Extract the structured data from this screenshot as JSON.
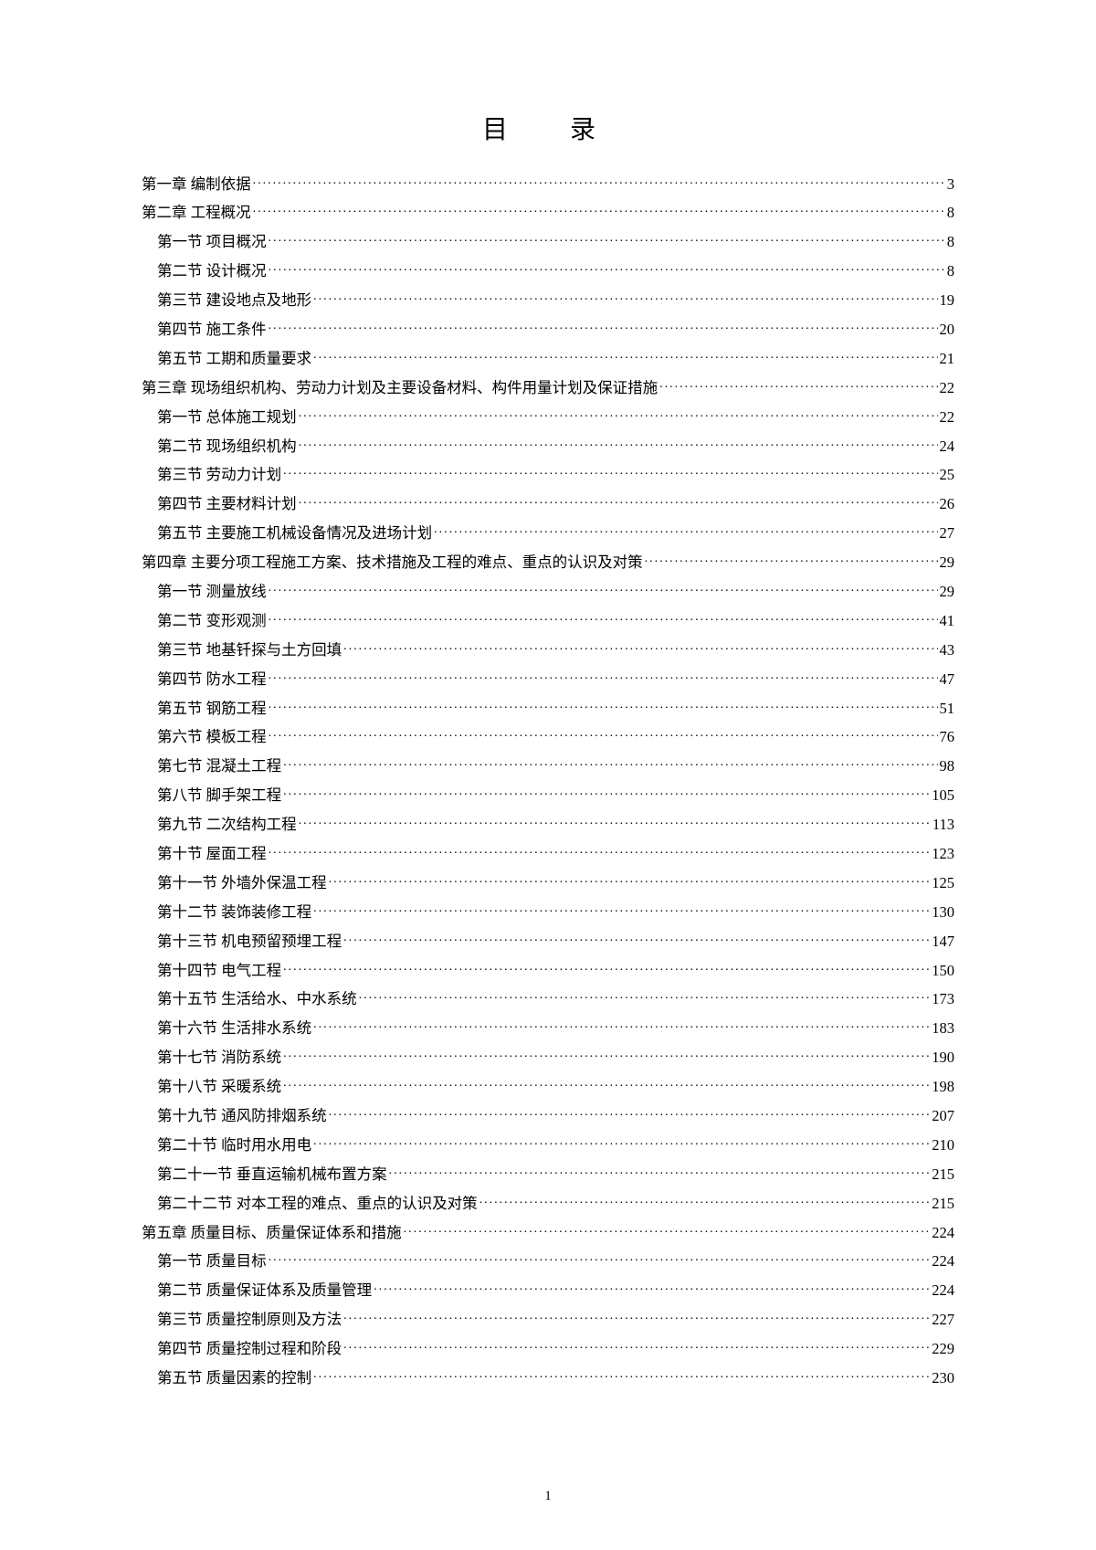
{
  "title": "目　录",
  "pageNumber": "1",
  "entries": [
    {
      "level": 0,
      "label": "第一章 编制依据",
      "page": "3"
    },
    {
      "level": 0,
      "label": "第二章 工程概况",
      "page": "8"
    },
    {
      "level": 1,
      "label": "第一节 项目概况",
      "page": "8"
    },
    {
      "level": 1,
      "label": "第二节 设计概况",
      "page": "8"
    },
    {
      "level": 1,
      "label": "第三节 建设地点及地形",
      "page": "19"
    },
    {
      "level": 1,
      "label": "第四节 施工条件",
      "page": "20"
    },
    {
      "level": 1,
      "label": "第五节 工期和质量要求",
      "page": "21"
    },
    {
      "level": 0,
      "label": "第三章 现场组织机构、劳动力计划及主要设备材料、构件用量计划及保证措施",
      "page": "22"
    },
    {
      "level": 1,
      "label": "第一节 总体施工规划",
      "page": "22"
    },
    {
      "level": 1,
      "label": "第二节 现场组织机构",
      "page": "24"
    },
    {
      "level": 1,
      "label": "第三节 劳动力计划",
      "page": "25"
    },
    {
      "level": 1,
      "label": "第四节 主要材料计划",
      "page": "26"
    },
    {
      "level": 1,
      "label": "第五节 主要施工机械设备情况及进场计划",
      "page": "27"
    },
    {
      "level": 0,
      "label": "第四章 主要分项工程施工方案、技术措施及工程的难点、重点的认识及对策",
      "page": "29"
    },
    {
      "level": 1,
      "label": "第一节 测量放线",
      "page": "29"
    },
    {
      "level": 1,
      "label": "第二节 变形观测",
      "page": "41"
    },
    {
      "level": 1,
      "label": "第三节 地基钎探与土方回填",
      "page": "43"
    },
    {
      "level": 1,
      "label": "第四节 防水工程",
      "page": "47"
    },
    {
      "level": 1,
      "label": "第五节 钢筋工程",
      "page": "51"
    },
    {
      "level": 1,
      "label": "第六节 模板工程",
      "page": "76"
    },
    {
      "level": 1,
      "label": "第七节 混凝土工程",
      "page": "98"
    },
    {
      "level": 1,
      "label": "第八节 脚手架工程",
      "page": "105"
    },
    {
      "level": 1,
      "label": "第九节 二次结构工程",
      "page": "113"
    },
    {
      "level": 1,
      "label": "第十节 屋面工程",
      "page": "123"
    },
    {
      "level": 1,
      "label": "第十一节 外墙外保温工程",
      "page": "125"
    },
    {
      "level": 1,
      "label": "第十二节 装饰装修工程",
      "page": "130"
    },
    {
      "level": 1,
      "label": "第十三节 机电预留预埋工程",
      "page": "147"
    },
    {
      "level": 1,
      "label": "第十四节 电气工程",
      "page": "150"
    },
    {
      "level": 1,
      "label": "第十五节 生活给水、中水系统",
      "page": "173"
    },
    {
      "level": 1,
      "label": "第十六节 生活排水系统",
      "page": "183"
    },
    {
      "level": 1,
      "label": "第十七节 消防系统",
      "page": "190"
    },
    {
      "level": 1,
      "label": "第十八节 采暖系统",
      "page": "198"
    },
    {
      "level": 1,
      "label": "第十九节 通风防排烟系统",
      "page": "207"
    },
    {
      "level": 1,
      "label": "第二十节 临时用水用电",
      "page": "210"
    },
    {
      "level": 1,
      "label": "第二十一节 垂直运输机械布置方案",
      "page": "215"
    },
    {
      "level": 1,
      "label": "第二十二节 对本工程的难点、重点的认识及对策",
      "page": "215"
    },
    {
      "level": 0,
      "label": "第五章 质量目标、质量保证体系和措施",
      "page": "224"
    },
    {
      "level": 1,
      "label": "第一节 质量目标",
      "page": "224"
    },
    {
      "level": 1,
      "label": "第二节 质量保证体系及质量管理",
      "page": "224"
    },
    {
      "level": 1,
      "label": "第三节 质量控制原则及方法",
      "page": "227"
    },
    {
      "level": 1,
      "label": "第四节 质量控制过程和阶段",
      "page": "229"
    },
    {
      "level": 1,
      "label": "第五节 质量因素的控制",
      "page": "230"
    }
  ]
}
